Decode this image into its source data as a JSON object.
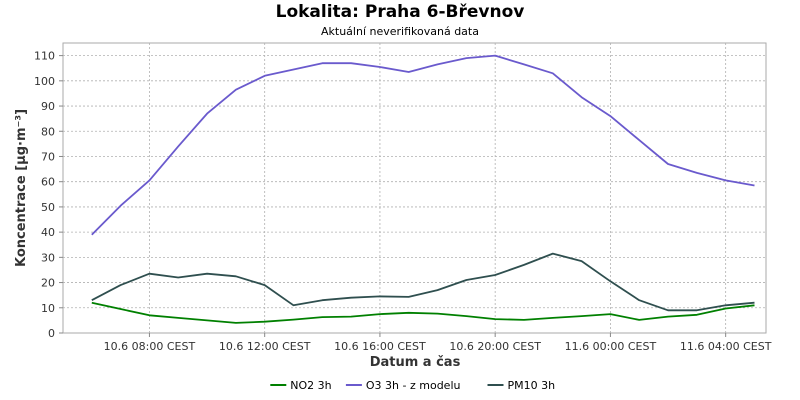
{
  "chart_data": {
    "type": "line",
    "title": "Lokalita: Praha 6-Břevnov",
    "subtitle": "Aktuální neverifikovaná data",
    "xlabel": "Datum a čas",
    "ylabel": "Koncentrace [µg·m⁻³]",
    "ylim": [
      0,
      115
    ],
    "yticks": [
      0,
      10,
      20,
      30,
      40,
      50,
      60,
      70,
      80,
      90,
      100,
      110
    ],
    "xlim": [
      5,
      29.4
    ],
    "xticks": [
      {
        "x": 8,
        "label": "10.6 08:00 CEST"
      },
      {
        "x": 12,
        "label": "10.6 12:00 CEST"
      },
      {
        "x": 16,
        "label": "10.6 16:00 CEST"
      },
      {
        "x": 20,
        "label": "10.6 20:00 CEST"
      },
      {
        "x": 24,
        "label": "11.6 00:00 CEST"
      },
      {
        "x": 28,
        "label": "11.6 04:00 CEST"
      }
    ],
    "x": [
      6,
      7,
      8,
      9,
      10,
      11,
      12,
      13,
      14,
      15,
      16,
      17,
      18,
      19,
      20,
      21,
      22,
      23,
      24,
      25,
      26,
      27,
      28,
      29
    ],
    "grid": true,
    "legend": "bottom",
    "series": [
      {
        "name": "NO2 3h",
        "color": "#008000",
        "values": [
          12,
          9.5,
          7,
          6,
          5,
          4,
          4.5,
          5.3,
          6.3,
          6.5,
          7.5,
          8,
          7.7,
          6.7,
          5.5,
          5.2,
          6,
          6.7,
          7.5,
          5.2,
          6.5,
          7.2,
          9.7,
          11
        ]
      },
      {
        "name": "O3 3h - z modelu",
        "color": "#6a5acd",
        "values": [
          39,
          50.5,
          60.5,
          74,
          87,
          96.5,
          102,
          104.5,
          107,
          107,
          105.5,
          103.5,
          106.5,
          109,
          110,
          106.5,
          103,
          93.5,
          86,
          76.5,
          67,
          63.5,
          60.5,
          58.5
        ]
      },
      {
        "name": "PM10 3h",
        "color": "#2f4f4f",
        "values": [
          13,
          19,
          23.5,
          22,
          23.5,
          22.5,
          19,
          11,
          13,
          14,
          14.5,
          14.3,
          17,
          21,
          23,
          27,
          31.5,
          28.5,
          20.5,
          13,
          9,
          9,
          11,
          12
        ]
      }
    ]
  }
}
